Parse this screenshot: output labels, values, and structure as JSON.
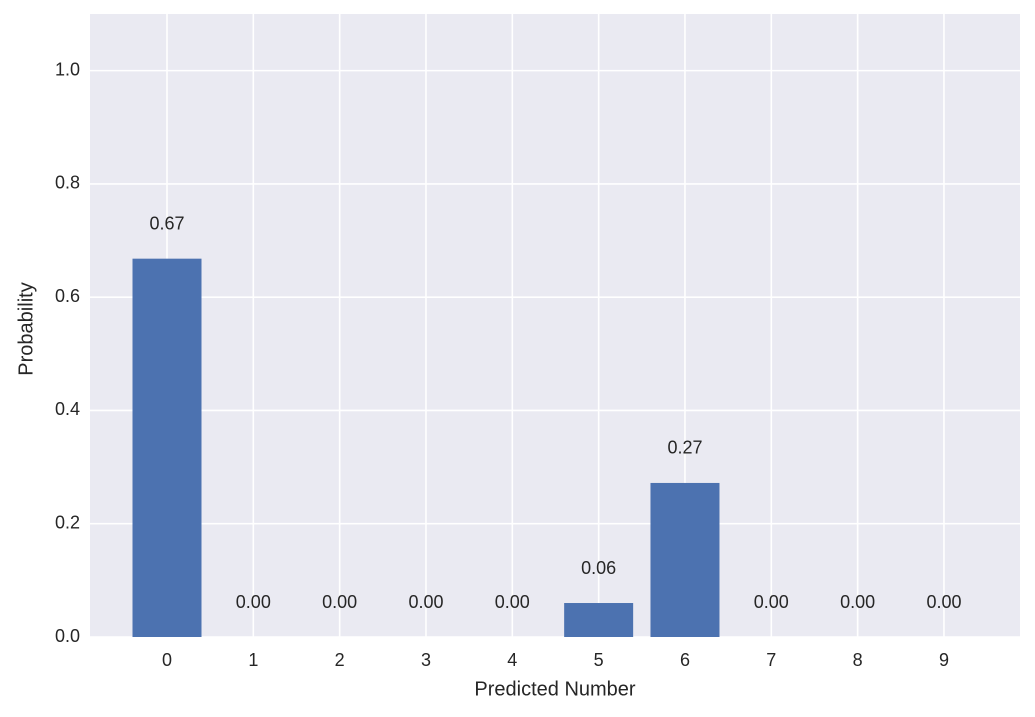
{
  "chart_data": {
    "type": "bar",
    "x_label": "Predicted Number",
    "y_label": "Probability",
    "categories": [
      "0",
      "1",
      "2",
      "3",
      "4",
      "5",
      "6",
      "7",
      "8",
      "9"
    ],
    "values": [
      0.668,
      0,
      0,
      0,
      0,
      0.06,
      0.272,
      0,
      0,
      0
    ],
    "value_labels": [
      "0.67",
      "0.00",
      "0.00",
      "0.00",
      "0.00",
      "0.06",
      "0.27",
      "0.00",
      "0.00",
      "0.00"
    ],
    "color": "#4c72b0",
    "ylim": [
      0,
      1.1
    ],
    "yticks": [
      {
        "value": 0,
        "label": "0.0"
      },
      0.2,
      0.4,
      0.6,
      0.8,
      {
        "value": 1,
        "label": "1.0"
      }
    ],
    "grid": true
  }
}
